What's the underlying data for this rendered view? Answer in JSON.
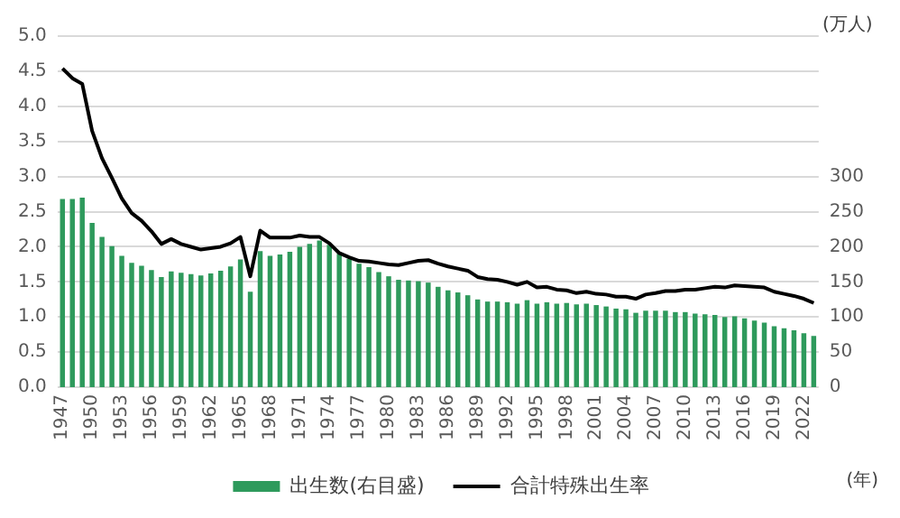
{
  "chart_data": {
    "type": "bar",
    "categories": [
      "1947",
      null,
      null,
      "1950",
      null,
      null,
      "1953",
      null,
      null,
      "1956",
      null,
      null,
      "1959",
      null,
      null,
      "1962",
      null,
      null,
      "1965",
      null,
      null,
      "1968",
      null,
      null,
      "1971",
      null,
      null,
      "1974",
      null,
      null,
      "1977",
      null,
      null,
      "1980",
      null,
      null,
      "1983",
      null,
      null,
      "1986",
      null,
      null,
      "1989",
      null,
      null,
      "1992",
      null,
      null,
      "1995",
      null,
      null,
      "1998",
      null,
      null,
      "2001",
      null,
      null,
      "2004",
      null,
      null,
      "2007",
      null,
      null,
      "2010",
      null,
      null,
      "2013",
      null,
      null,
      "2016",
      null,
      null,
      "2019",
      null,
      null,
      "2022",
      null
    ],
    "series": [
      {
        "name": "出生数(右目盛)",
        "axis": "y2",
        "color": "#2e9a5c",
        "values": [
          268,
          268,
          270,
          234,
          214,
          201,
          187,
          177,
          173,
          167,
          157,
          165,
          163,
          161,
          159,
          162,
          166,
          172,
          182,
          136,
          194,
          187,
          189,
          193,
          200,
          204,
          209,
          203,
          190,
          183,
          176,
          171,
          164,
          158,
          153,
          152,
          151,
          149,
          143,
          138,
          135,
          131,
          125,
          122,
          122,
          121,
          119,
          124,
          119,
          121,
          119,
          120,
          118,
          119,
          117,
          115,
          112,
          111,
          106,
          109,
          109,
          109,
          107,
          107,
          105,
          104,
          103,
          100,
          101,
          98,
          95,
          92,
          87,
          84,
          81,
          77,
          73
        ]
      },
      {
        "name": "合計特殊出生率",
        "type": "line",
        "color": "#000000",
        "values": [
          4.54,
          4.4,
          4.32,
          3.65,
          3.26,
          2.98,
          2.69,
          2.48,
          2.37,
          2.22,
          2.04,
          2.11,
          2.04,
          2.0,
          1.96,
          1.98,
          2.0,
          2.05,
          2.14,
          1.58,
          2.23,
          2.13,
          2.13,
          2.13,
          2.16,
          2.14,
          2.14,
          2.05,
          1.91,
          1.85,
          1.8,
          1.79,
          1.77,
          1.75,
          1.74,
          1.77,
          1.8,
          1.81,
          1.76,
          1.72,
          1.69,
          1.66,
          1.57,
          1.54,
          1.53,
          1.5,
          1.46,
          1.5,
          1.42,
          1.43,
          1.39,
          1.38,
          1.34,
          1.36,
          1.33,
          1.32,
          1.29,
          1.29,
          1.26,
          1.32,
          1.34,
          1.37,
          1.37,
          1.39,
          1.39,
          1.41,
          1.43,
          1.42,
          1.45,
          1.44,
          1.43,
          1.42,
          1.36,
          1.33,
          1.3,
          1.26,
          1.2
        ]
      }
    ],
    "xlabel": "(年)",
    "y2label": "(万人)",
    "ylim": [
      0,
      5
    ],
    "yticks": [
      {
        "value": 0,
        "label": "0.0"
      },
      {
        "value": 0.5,
        "label": "0.5"
      },
      {
        "value": 1,
        "label": "1.0"
      },
      {
        "value": 1.5,
        "label": "1.5"
      },
      {
        "value": 2,
        "label": "2.0"
      },
      {
        "value": 2.5,
        "label": "2.5"
      },
      {
        "value": 3,
        "label": "3.0"
      },
      {
        "value": 3.5,
        "label": "3.5"
      },
      {
        "value": 4,
        "label": "4.0"
      },
      {
        "value": 4.5,
        "label": "4.5"
      },
      {
        "value": 5,
        "label": "5.0"
      }
    ],
    "y2lim": [
      0,
      500
    ],
    "y2ticks": [
      0,
      50,
      100,
      150,
      200,
      250,
      300
    ],
    "grid": "y",
    "legend": "bottom",
    "marker": "none",
    "line_style": "solid"
  }
}
